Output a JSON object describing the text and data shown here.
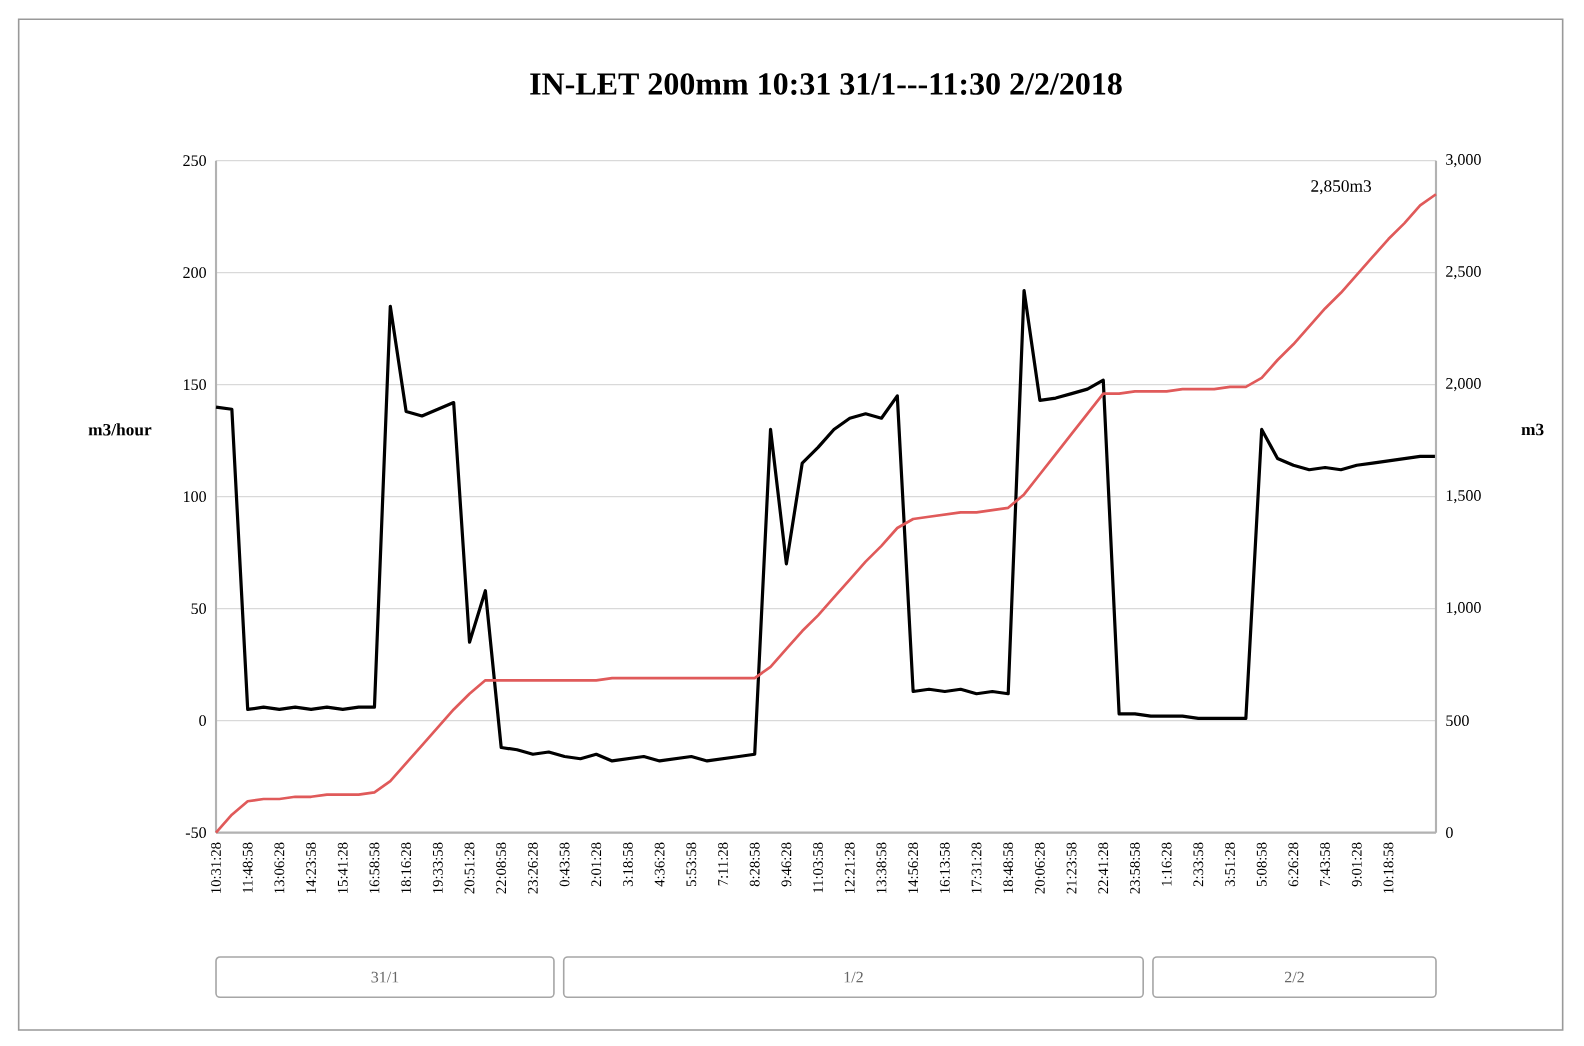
{
  "chart_data": {
    "type": "line",
    "title": "IN-LET  200mm 10:31 31/1---11:30 2/2/2018",
    "ylabel": "m3/hour",
    "y2label": "m3",
    "categories": [
      "10:31:28",
      null,
      "11:48:58",
      null,
      "13:06:28",
      null,
      "14:23:58",
      null,
      "15:41:28",
      null,
      "16:58:58",
      null,
      "18:16:28",
      null,
      "19:33:58",
      null,
      "20:51:28",
      null,
      "22:08:58",
      null,
      "23:26:28",
      null,
      "0:43:58",
      null,
      "2:01:28",
      null,
      "3:18:58",
      null,
      "4:36:28",
      null,
      "5:53:58",
      null,
      "7:11:28",
      null,
      "8:28:58",
      null,
      "9:46:28",
      null,
      "11:03:58",
      null,
      "12:21:28",
      null,
      "13:38:58",
      null,
      "14:56:28",
      null,
      "16:13:58",
      null,
      "17:31:28",
      null,
      "18:48:58",
      null,
      "20:06:28",
      null,
      "21:23:58",
      null,
      "22:41:28",
      null,
      "23:58:58",
      null,
      "1:16:28",
      null,
      "2:33:58",
      null,
      "3:51:28",
      null,
      "5:08:58",
      null,
      "6:26:28",
      null,
      "7:43:58",
      null,
      "9:01:28",
      null,
      "10:18:58",
      null,
      null,
      null
    ],
    "ylim": [
      -50,
      250
    ],
    "yticks": [
      -50,
      0,
      50,
      100,
      150,
      200,
      250
    ],
    "y2lim": [
      0,
      3000
    ],
    "y2ticks": [
      0,
      500,
      {
        "value": 1000,
        "label": "1,000"
      },
      {
        "value": 1500,
        "label": "1,500"
      },
      {
        "value": 2000,
        "label": "2,000"
      },
      {
        "value": 2500,
        "label": "2,500"
      },
      {
        "value": 3000,
        "label": "3,000"
      }
    ],
    "grid": "y",
    "series": [
      {
        "color": "#000000",
        "values": [
          140,
          139,
          5,
          6,
          5,
          6,
          5,
          6,
          5,
          6,
          6,
          185,
          138,
          136,
          139,
          142,
          35,
          58,
          -12,
          -13,
          -15,
          -14,
          -16,
          -17,
          -15,
          -18,
          -17,
          -16,
          -18,
          -17,
          -16,
          -18,
          -17,
          -16,
          -15,
          130,
          70,
          115,
          122,
          130,
          135,
          137,
          135,
          145,
          13,
          14,
          13,
          14,
          12,
          13,
          12,
          192,
          143,
          144,
          146,
          148,
          152,
          3,
          3,
          2,
          2,
          2,
          1,
          1,
          1,
          1,
          130,
          117,
          114,
          112,
          113,
          112,
          114,
          115,
          116,
          117,
          118,
          118
        ]
      },
      {
        "color": "#e05a5a",
        "axis": "y2",
        "values": [
          0,
          80,
          140,
          150,
          150,
          160,
          160,
          170,
          170,
          170,
          180,
          230,
          310,
          390,
          470,
          550,
          620,
          680,
          680,
          680,
          680,
          680,
          680,
          680,
          680,
          690,
          690,
          690,
          690,
          690,
          690,
          690,
          690,
          690,
          690,
          740,
          820,
          900,
          970,
          1050,
          1130,
          1210,
          1280,
          1360,
          1400,
          1410,
          1420,
          1430,
          1430,
          1440,
          1450,
          1510,
          1600,
          1690,
          1780,
          1870,
          1960,
          1960,
          1970,
          1970,
          1970,
          1980,
          1980,
          1980,
          1990,
          1990,
          2030,
          2110,
          2180,
          2260,
          2340,
          2410,
          2490,
          2570,
          2650,
          2720,
          2800,
          2850
        ]
      }
    ],
    "annotations": [
      "2,850m3",
      "31/1",
      "1/2",
      "2/2"
    ]
  }
}
